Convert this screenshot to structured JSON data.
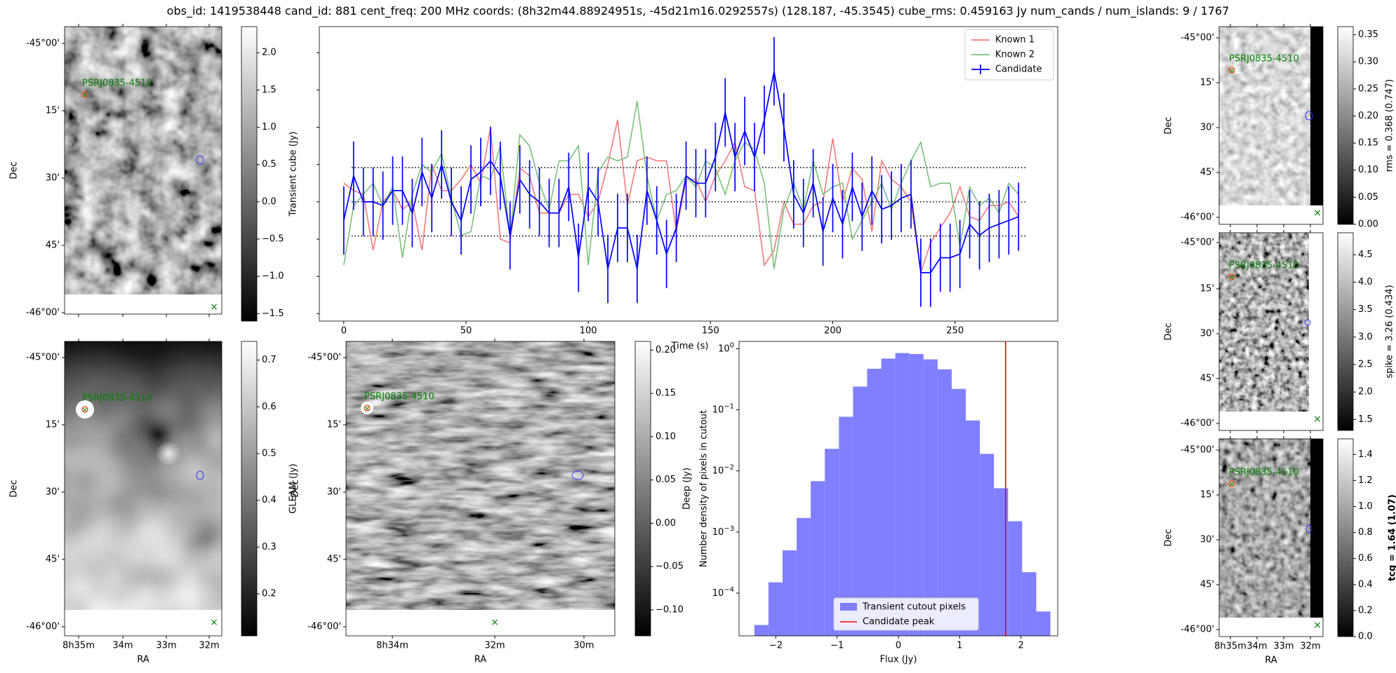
{
  "title": "obs_id: 1419538448 cand_id: 881 cent_freq: 200 MHz coords: (8h32m44.88924951s, -45d21m16.0292557s) (128.187, -45.3545) cube_rms: 0.459163 Jy num_cands / num_islands: 9 / 1767",
  "colors": {
    "known1": "#f47a7a",
    "known2": "#7ac07a",
    "candidate": "#0000ff",
    "histogram": "#7f7fff",
    "peak": "#ff0000",
    "source_label": "#008000",
    "circle": "#3333ff"
  },
  "cutout_axes": {
    "dec_ticks": [
      "-45°00'",
      "15'",
      "30'",
      "45'",
      "-46°00'"
    ],
    "ra_ticks_full": [
      "8h35m",
      "34m",
      "33m",
      "32m"
    ],
    "ra_ticks_deep": [
      "8h34m",
      "32m",
      "30m"
    ],
    "dec_label": "Dec",
    "ra_label": "RA",
    "source_name": "PSRJ0835-4510"
  },
  "chart_data": [
    {
      "type": "image",
      "id": "transient_cube",
      "colorbar_label": "Transient cube (Jy)",
      "colorbar_ticks": [
        2.0,
        1.5,
        1.0,
        0.5,
        0.0,
        -0.5,
        -1.0,
        -1.5
      ],
      "colorbar_range": [
        -1.6,
        2.35
      ]
    },
    {
      "type": "line",
      "id": "lightcurve",
      "xlabel": "Time (s)",
      "xlim": [
        -10,
        292
      ],
      "ylim": [
        -1.6,
        2.35
      ],
      "xticks": [
        0,
        50,
        100,
        150,
        200,
        250
      ],
      "hlines": [
        -0.459,
        0.0,
        0.459
      ],
      "legend": [
        "Known 1",
        "Known 2",
        "Candidate"
      ],
      "legend_position": "top-right",
      "x": [
        0,
        4,
        8,
        12,
        16,
        20,
        24,
        28,
        32,
        36,
        40,
        44,
        48,
        52,
        56,
        60,
        64,
        68,
        72,
        76,
        80,
        84,
        88,
        92,
        96,
        100,
        104,
        108,
        112,
        116,
        120,
        124,
        128,
        132,
        136,
        140,
        144,
        148,
        152,
        156,
        160,
        164,
        168,
        172,
        176,
        180,
        184,
        188,
        192,
        196,
        200,
        204,
        208,
        212,
        216,
        220,
        224,
        228,
        232,
        236,
        240,
        244,
        248,
        252,
        256,
        260,
        264,
        268,
        272,
        276
      ],
      "series": [
        {
          "name": "Known 1",
          "values": [
            0.25,
            0.15,
            0.1,
            -0.65,
            0.0,
            0.15,
            -0.1,
            0.0,
            -0.65,
            0.5,
            0.15,
            0.15,
            0.3,
            0.5,
            0.25,
            1.0,
            -0.5,
            -0.55,
            0.45,
            0.35,
            -0.15,
            -0.15,
            -0.15,
            0.1,
            0.1,
            -0.2,
            0.0,
            0.5,
            1.1,
            -0.05,
            0.55,
            0.6,
            0.55,
            0.55,
            -0.4,
            0.3,
            0.3,
            0.0,
            0.35,
            0.55,
            0.8,
            0.2,
            0.15,
            -0.85,
            -0.65,
            0.0,
            -0.3,
            -0.3,
            -0.05,
            0.0,
            0.85,
            0.0,
            0.45,
            0.3,
            -0.4,
            0.55,
            0.3,
            0.2,
            0.0,
            -0.95,
            -0.55,
            -0.35,
            -0.15,
            0.2,
            -0.2,
            -0.25,
            -0.05,
            -0.05,
            0.0,
            -0.2
          ]
        },
        {
          "name": "Known 2",
          "values": [
            -0.85,
            -0.05,
            0.1,
            0.25,
            -0.05,
            0.2,
            -0.75,
            0.1,
            0.5,
            0.4,
            0.65,
            0.05,
            -0.45,
            -0.4,
            0.35,
            0.3,
            0.75,
            -0.5,
            0.9,
            0.75,
            0.25,
            -0.1,
            0.55,
            0.55,
            0.75,
            -0.85,
            0.4,
            0.6,
            0.55,
            0.6,
            1.35,
            0.35,
            -0.25,
            0.1,
            0.15,
            0.35,
            0.2,
            0.55,
            0.45,
            0.1,
            0.55,
            0.8,
            0.7,
            0.25,
            -0.9,
            -0.1,
            0.25,
            -0.1,
            0.55,
            0.1,
            0.2,
            0.25,
            -0.5,
            -0.25,
            0.0,
            0.25,
            -0.1,
            0.25,
            0.55,
            0.8,
            0.2,
            0.25,
            0.25,
            -0.6,
            0.2,
            -0.05,
            0.05,
            -0.15,
            0.25,
            0.1
          ]
        },
        {
          "name": "Candidate",
          "values": [
            -0.25,
            0.35,
            0.0,
            0.0,
            -0.05,
            0.15,
            0.15,
            -0.15,
            0.4,
            0.05,
            0.5,
            0.0,
            -0.25,
            0.3,
            0.4,
            0.55,
            0.35,
            -0.45,
            0.3,
            0.1,
            0.0,
            -0.15,
            -0.15,
            0.2,
            -0.75,
            0.2,
            0.0,
            -0.9,
            -0.35,
            -0.35,
            -0.9,
            0.15,
            -0.25,
            -0.7,
            -0.35,
            0.35,
            0.25,
            0.25,
            0.6,
            1.2,
            0.6,
            0.95,
            0.6,
            1.1,
            1.75,
            1.0,
            0.1,
            -0.15,
            0.25,
            -0.4,
            0.05,
            -0.3,
            0.2,
            -0.2,
            0.15,
            -0.1,
            -0.05,
            0.05,
            0.1,
            -0.95,
            -0.95,
            -0.75,
            -0.75,
            -0.7,
            -0.3,
            -0.45,
            -0.35,
            -0.3,
            -0.25,
            -0.2
          ]
        }
      ],
      "error_bar": 0.459
    },
    {
      "type": "image",
      "id": "gleam",
      "colorbar_label": "GLEAM (Jy)",
      "colorbar_ticks": [
        0.7,
        0.6,
        0.5,
        0.4,
        0.3,
        0.2
      ],
      "colorbar_range": [
        0.11,
        0.74
      ]
    },
    {
      "type": "image",
      "id": "deep",
      "colorbar_label": "Deep (Jy)",
      "colorbar_ticks": [
        0.2,
        0.15,
        0.1,
        0.05,
        0.0,
        -0.05,
        -0.1
      ],
      "colorbar_range": [
        -0.13,
        0.21
      ]
    },
    {
      "type": "bar",
      "id": "histogram",
      "xlabel": "Flux (Jy)",
      "ylabel": "Number density of pixels in cutout",
      "yscale": "log",
      "xlim": [
        -2.6,
        2.6
      ],
      "ylim_exp": [
        -4.7,
        0.12
      ],
      "xticks": [
        -2,
        -1,
        0,
        1,
        2
      ],
      "yticks": [
        "10^0",
        "10^-1",
        "10^-2",
        "10^-3",
        "10^-4"
      ],
      "bin_edges": [
        -2.35,
        -2.12,
        -1.89,
        -1.66,
        -1.43,
        -1.2,
        -0.97,
        -0.74,
        -0.51,
        -0.28,
        -0.05,
        0.18,
        0.41,
        0.64,
        0.87,
        1.1,
        1.33,
        1.56,
        1.79,
        2.02,
        2.25,
        2.48
      ],
      "values": [
        3e-05,
        0.00015,
        0.0005,
        0.0017,
        0.0068,
        0.023,
        0.077,
        0.24,
        0.47,
        0.69,
        0.85,
        0.82,
        0.67,
        0.46,
        0.22,
        0.067,
        0.019,
        0.0052,
        0.0015,
        0.00022,
        5e-05
      ],
      "candidate_peak": 1.75,
      "legend": [
        "Transient cutout pixels",
        "Candidate peak"
      ],
      "legend_position": "bottom-center"
    },
    {
      "type": "image",
      "id": "rms",
      "colorbar_label": "rms = 0.368 (0.747)",
      "colorbar_ticks": [
        0.35,
        0.3,
        0.25,
        0.2,
        0.15,
        0.1,
        0.05,
        0.0
      ],
      "colorbar_range": [
        0.0,
        0.365
      ]
    },
    {
      "type": "image",
      "id": "spike",
      "colorbar_label": "spike = 3.26 (0.434)",
      "colorbar_ticks": [
        4.5,
        4.0,
        3.5,
        3.0,
        2.5,
        2.0,
        1.5
      ],
      "colorbar_range": [
        1.3,
        4.9
      ]
    },
    {
      "type": "image",
      "id": "tcg",
      "colorbar_label": "tcg = 1.64 (1.07)",
      "colorbar_ticks": [
        1.4,
        1.2,
        1.0,
        0.8,
        0.6,
        0.4,
        0.2,
        0.0
      ],
      "colorbar_range": [
        0.0,
        1.52
      ]
    }
  ]
}
